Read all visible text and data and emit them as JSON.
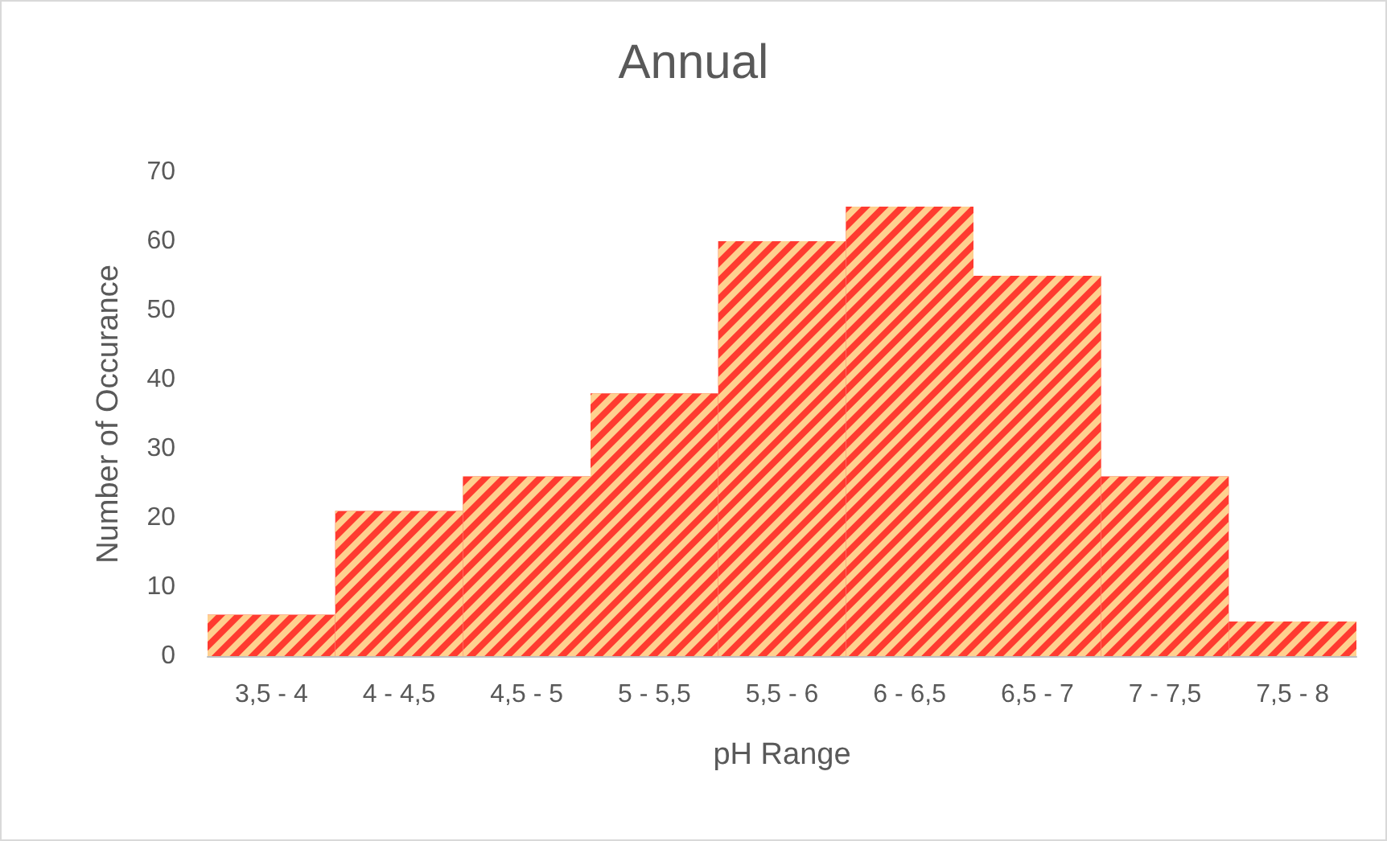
{
  "chart_data": {
    "type": "bar",
    "title": "Annual",
    "xlabel": "pH Range",
    "ylabel": "Number of Occurance",
    "categories": [
      "3,5 - 4",
      "4 - 4,5",
      "4,5 - 5",
      "5 - 5,5",
      "5,5 - 6",
      "6 - 6,5",
      "6,5 - 7",
      "7 - 7,5",
      "7,5 - 8"
    ],
    "values": [
      6,
      21,
      26,
      38,
      60,
      65,
      55,
      26,
      5
    ],
    "color": "#ff3b30",
    "ylim": [
      0,
      70
    ],
    "yticks": [
      0,
      10,
      20,
      30,
      40,
      50,
      60,
      70
    ],
    "grid": false
  }
}
